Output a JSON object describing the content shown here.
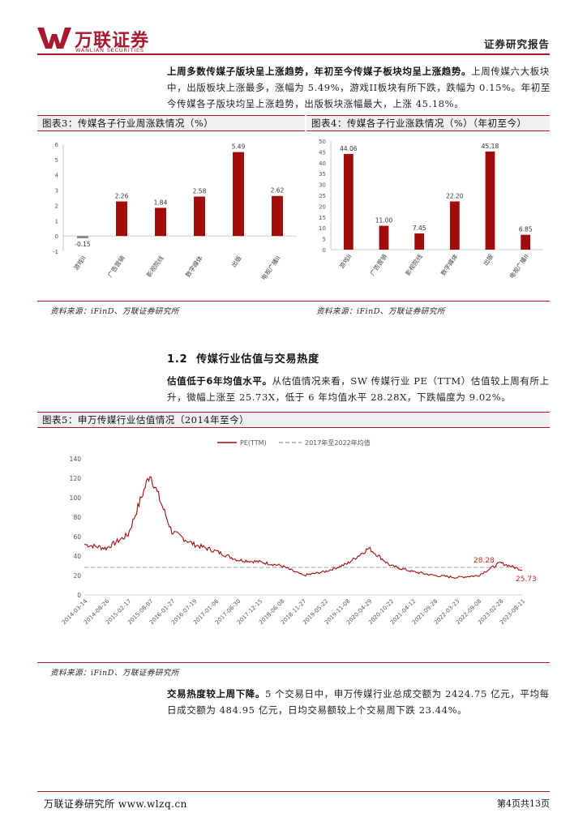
{
  "header": {
    "logo_cn": "万联证券",
    "logo_en": "WANLIAN SECURITIES",
    "report_type": "证券研究报告",
    "brand_color": "#a6192e"
  },
  "intro": {
    "bold": "上周多数传媒子版块呈上涨趋势，年初至今传媒子板块均呈上涨趋势。",
    "text": "上周传媒六大板块中，出版板块上涨最多，涨幅为 5.49%，游戏II板块有所下跌，跌幅为 0.15%。年初至今传媒各子版块均呈上涨趋势，出版板块涨幅最大，上涨 45.18%。"
  },
  "figure3": {
    "title": "图表3：传媒各子行业周涨跌情况（%）",
    "source": "资料来源：iFinD、万联证券研究所"
  },
  "figure4": {
    "title": "图表4：传媒各子行业涨跌情况（%）（年初至今）",
    "source": "资料来源：iFinD、万联证券研究所"
  },
  "section": {
    "number": "1.2",
    "title": "传媒行业估值与交易热度"
  },
  "valuation": {
    "bold": "估值低于6年均值水平。",
    "text": "从估值情况来看，SW 传媒行业 PE（TTM）估值较上周有所上升，微幅上涨至 25.73X，低于 6 年均值水平 28.28X，下跌幅度为 9.02%。"
  },
  "figure5": {
    "title": "图表5：申万传媒行业估值情况（2014年至今）",
    "source": "资料来源：iFinD、万联证券研究所"
  },
  "trading": {
    "bold": "交易热度较上周下降。",
    "text": "5 个交易日中，申万传媒行业总成交额为 2424.75 亿元，平均每日成交额为 484.95 亿元，日均交易额较上个交易周下跌 23.44%。"
  },
  "footer": {
    "left": "万联证券研究所  www.wlzq.cn",
    "right": "第4页共13页"
  },
  "chart_data": [
    {
      "type": "bar",
      "categories": [
        "游戏II",
        "广告营销",
        "影视院线",
        "数字媒体",
        "出版",
        "电视广播II"
      ],
      "values": [
        -0.15,
        2.26,
        1.84,
        2.58,
        5.49,
        2.62
      ],
      "value_labels": [
        "-0.15",
        "2.26",
        "1.84",
        "2.58",
        "5.49",
        "2.62"
      ],
      "ylim": [
        -1,
        6
      ],
      "yticks": [
        "-1",
        "0",
        "1",
        "2",
        "3",
        "4",
        "5",
        "6"
      ],
      "color_positive": "#a00c0c",
      "color_negative": "#888888"
    },
    {
      "type": "bar",
      "categories": [
        "游戏II",
        "广告营销",
        "影视院线",
        "数字媒体",
        "出版",
        "电视广播II"
      ],
      "values": [
        44.06,
        11.0,
        7.45,
        22.2,
        45.18,
        6.85
      ],
      "value_labels": [
        "44.06",
        "11.00",
        "7.45",
        "22.20",
        "45.18",
        "6.85"
      ],
      "ylim": [
        0,
        50
      ],
      "yticks": [
        "0",
        "5",
        "10",
        "15",
        "20",
        "25",
        "30",
        "35",
        "40",
        "45",
        "50"
      ],
      "color": "#a00c0c"
    },
    {
      "type": "line",
      "series": [
        {
          "name": "PE(TTM)",
          "color": "#a00c0c"
        },
        {
          "name": "2017年至2022年均值",
          "color": "#aaaaaa",
          "value": 28.28
        }
      ],
      "ylim": [
        0,
        140
      ],
      "yticks": [
        "0",
        "20",
        "40",
        "60",
        "80",
        "100",
        "120",
        "140"
      ],
      "x": [
        "2014-03-14",
        "2014-08-26",
        "2015-02-17",
        "2015-08-07",
        "2016-01-27",
        "2016-07-19",
        "2017-01-06",
        "2017-06-30",
        "2017-12-15",
        "2018-06-08",
        "2018-11-27",
        "2019-05-22",
        "2019-11-08",
        "2020-04-29",
        "2020-10-22",
        "2021-04-12",
        "2021-09-28",
        "2022-03-23",
        "2022-09-08",
        "2023-02-28",
        "2023-08-11"
      ],
      "y": [
        52,
        48,
        62,
        125,
        65,
        52,
        45,
        36,
        34,
        30,
        20,
        24,
        32,
        48,
        30,
        24,
        20,
        18,
        20,
        33,
        25.73
      ],
      "annotations": [
        "28.28",
        "25.73"
      ]
    }
  ]
}
